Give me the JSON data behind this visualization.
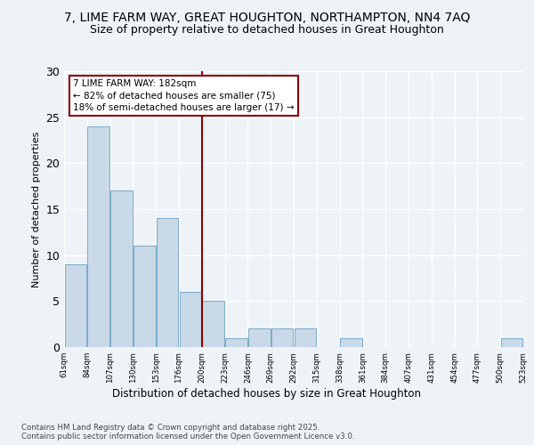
{
  "title": "7, LIME FARM WAY, GREAT HOUGHTON, NORTHAMPTON, NN4 7AQ",
  "subtitle": "Size of property relative to detached houses in Great Houghton",
  "xlabel": "Distribution of detached houses by size in Great Houghton",
  "ylabel": "Number of detached properties",
  "bar_values": [
    9,
    24,
    17,
    11,
    14,
    6,
    5,
    1,
    2,
    2,
    2,
    0,
    1,
    0,
    0,
    0,
    0,
    0,
    0,
    1
  ],
  "bin_labels": [
    "61sqm",
    "84sqm",
    "107sqm",
    "130sqm",
    "153sqm",
    "176sqm",
    "200sqm",
    "223sqm",
    "246sqm",
    "269sqm",
    "292sqm",
    "315sqm",
    "338sqm",
    "361sqm",
    "384sqm",
    "407sqm",
    "431sqm",
    "454sqm",
    "477sqm",
    "500sqm",
    "523sqm"
  ],
  "bar_color": "#c9d9e8",
  "bar_edge_color": "#7aaac8",
  "vline_color": "#8b0000",
  "annotation_text": "7 LIME FARM WAY: 182sqm\n← 82% of detached houses are smaller (75)\n18% of semi-detached houses are larger (17) →",
  "annotation_box_color": "#8b0000",
  "ylim": [
    0,
    30
  ],
  "yticks": [
    0,
    5,
    10,
    15,
    20,
    25,
    30
  ],
  "footer": "Contains HM Land Registry data © Crown copyright and database right 2025.\nContains public sector information licensed under the Open Government Licence v3.0.",
  "background_color": "#eef3f8",
  "grid_color": "#ffffff",
  "title_fontsize": 10,
  "subtitle_fontsize": 9
}
